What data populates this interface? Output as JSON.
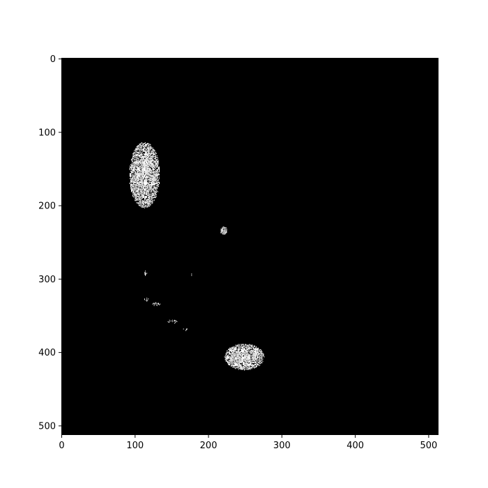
{
  "chart_data": {
    "type": "heatmap",
    "title": "",
    "xlabel": "",
    "ylabel": "",
    "colormap": "binary (black = 0, white = 1)",
    "background_color": "#000000",
    "foreground_color": "#ffffff",
    "shape": [
      512,
      512
    ],
    "xlim": [
      0,
      512
    ],
    "ylim": [
      512,
      0
    ],
    "grid": false,
    "x_ticks": [
      {
        "value": 0,
        "label": "0"
      },
      {
        "value": 100,
        "label": "100"
      },
      {
        "value": 200,
        "label": "200"
      },
      {
        "value": 300,
        "label": "300"
      },
      {
        "value": 400,
        "label": "400"
      },
      {
        "value": 500,
        "label": "500"
      }
    ],
    "y_ticks": [
      {
        "value": 0,
        "label": "0"
      },
      {
        "value": 100,
        "label": "100"
      },
      {
        "value": 200,
        "label": "200"
      },
      {
        "value": 300,
        "label": "300"
      },
      {
        "value": 400,
        "label": "400"
      },
      {
        "value": 500,
        "label": "500"
      }
    ],
    "white_regions": [
      {
        "cx": 112,
        "cy": 158,
        "rx": 21,
        "ry": 45,
        "density": 0.85
      },
      {
        "cx": 248,
        "cy": 406,
        "rx": 27,
        "ry": 18,
        "density": 0.85
      },
      {
        "cx": 220,
        "cy": 234,
        "rx": 5,
        "ry": 6,
        "density": 0.75
      },
      {
        "cx": 113,
        "cy": 292,
        "rx": 2,
        "ry": 3,
        "density": 0.6
      },
      {
        "cx": 176,
        "cy": 294,
        "rx": 1,
        "ry": 1,
        "density": 0.6
      },
      {
        "cx": 115,
        "cy": 328,
        "rx": 4,
        "ry": 2,
        "density": 0.5
      },
      {
        "cx": 128,
        "cy": 334,
        "rx": 5,
        "ry": 3,
        "density": 0.4
      },
      {
        "cx": 150,
        "cy": 358,
        "rx": 6,
        "ry": 3,
        "density": 0.35
      },
      {
        "cx": 168,
        "cy": 368,
        "rx": 3,
        "ry": 2,
        "density": 0.35
      }
    ]
  }
}
